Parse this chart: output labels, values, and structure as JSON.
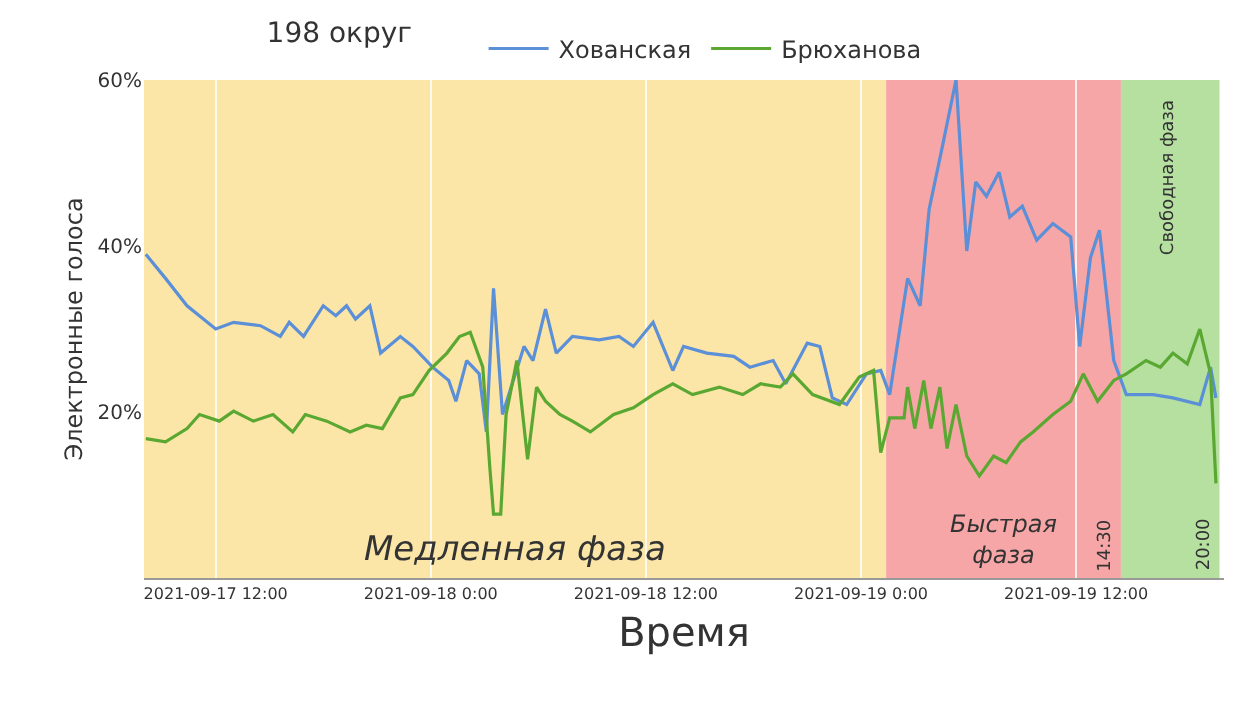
{
  "chart_data": {
    "type": "line",
    "title": "198 округ",
    "xlabel": "Время",
    "ylabel": "Электронные голоса",
    "xlim": [
      "2021-09-17T08:00",
      "2021-09-19T20:15"
    ],
    "xticks": [
      {
        "value": "2021-09-17T12:00",
        "label": "2021-09-17 12:00"
      },
      {
        "value": "2021-09-18T00:00",
        "label": "2021-09-18 0:00"
      },
      {
        "value": "2021-09-18T12:00",
        "label": "2021-09-18 12:00"
      },
      {
        "value": "2021-09-19T00:00",
        "label": "2021-09-19 0:00"
      },
      {
        "value": "2021-09-19T12:00",
        "label": "2021-09-19 12:00"
      }
    ],
    "ylim": [
      0,
      60
    ],
    "yticks": [
      {
        "value": 0,
        "label": null
      },
      {
        "value": 20,
        "label": "20%"
      },
      {
        "value": 40,
        "label": "40%"
      },
      {
        "value": 60,
        "label": "60%"
      }
    ],
    "grid": "x",
    "legend": "top",
    "marker": "none",
    "line_style": "solid",
    "bands": [
      {
        "axis": "x",
        "from": "2021-09-17T08:00",
        "to": "2021-09-19T01:24",
        "label": "Медленная фаза",
        "color": "#fbe6a8"
      },
      {
        "axis": "x",
        "from": "2021-09-19T01:24",
        "to": "2021-09-19T14:30",
        "label": "Быстрая фаза",
        "color": "#f6a6a6"
      },
      {
        "axis": "x",
        "from": "2021-09-19T14:30",
        "to": "2021-09-19T20:00",
        "label": "Свободная фаза",
        "color": "#b5e0a0"
      }
    ],
    "annotations": [
      {
        "text": "14:30",
        "x": "2021-09-19T14:30",
        "y": 4
      },
      {
        "text": "20:00",
        "x": "2021-09-19T20:00",
        "y": 4
      }
    ],
    "series": [
      {
        "name": "Хованская",
        "color": "#5b8fd8",
        "x": [
          "2021-09-17T08:06",
          "2021-09-17T09:12",
          "2021-09-17T10:24",
          "2021-09-17T12:00",
          "2021-09-17T13:00",
          "2021-09-17T14:30",
          "2021-09-17T15:36",
          "2021-09-17T16:06",
          "2021-09-17T16:54",
          "2021-09-17T18:00",
          "2021-09-17T18:42",
          "2021-09-17T19:18",
          "2021-09-17T19:48",
          "2021-09-17T20:36",
          "2021-09-17T21:12",
          "2021-09-17T22:18",
          "2021-09-17T23:00",
          "2021-09-18T00:06",
          "2021-09-18T01:00",
          "2021-09-18T01:24",
          "2021-09-18T02:00",
          "2021-09-18T02:42",
          "2021-09-18T03:06",
          "2021-09-18T03:30",
          "2021-09-18T04:00",
          "2021-09-18T04:36",
          "2021-09-18T05:12",
          "2021-09-18T05:42",
          "2021-09-18T06:24",
          "2021-09-18T07:00",
          "2021-09-18T07:54",
          "2021-09-18T09:24",
          "2021-09-18T10:30",
          "2021-09-18T11:18",
          "2021-09-18T12:24",
          "2021-09-18T13:30",
          "2021-09-18T14:06",
          "2021-09-18T15:24",
          "2021-09-18T16:54",
          "2021-09-18T17:48",
          "2021-09-18T19:06",
          "2021-09-18T19:48",
          "2021-09-18T21:00",
          "2021-09-18T21:42",
          "2021-09-18T22:24",
          "2021-09-18T23:12",
          "2021-09-19T00:18",
          "2021-09-19T01:06",
          "2021-09-19T01:36",
          "2021-09-19T02:36",
          "2021-09-19T03:18",
          "2021-09-19T03:48",
          "2021-09-19T04:36",
          "2021-09-19T05:18",
          "2021-09-19T05:54",
          "2021-09-19T06:24",
          "2021-09-19T07:00",
          "2021-09-19T07:42",
          "2021-09-19T08:18",
          "2021-09-19T09:00",
          "2021-09-19T09:48",
          "2021-09-19T10:42",
          "2021-09-19T11:42",
          "2021-09-19T12:12",
          "2021-09-19T12:48",
          "2021-09-19T13:18",
          "2021-09-19T14:06",
          "2021-09-19T14:48",
          "2021-09-19T16:18",
          "2021-09-19T17:24",
          "2021-09-19T18:54",
          "2021-09-19T19:30",
          "2021-09-19T19:48"
        ],
        "values": [
          39.0,
          36.1,
          32.8,
          30.0,
          30.8,
          30.4,
          29.1,
          30.8,
          29.1,
          32.8,
          31.6,
          32.8,
          31.2,
          32.8,
          27.1,
          29.1,
          27.9,
          25.4,
          23.8,
          21.3,
          26.2,
          24.6,
          17.6,
          34.9,
          19.7,
          23.8,
          27.9,
          26.2,
          32.4,
          27.1,
          29.1,
          28.7,
          29.1,
          27.9,
          30.8,
          25.0,
          27.9,
          27.1,
          26.7,
          25.4,
          26.2,
          23.4,
          28.3,
          27.9,
          21.7,
          20.9,
          24.6,
          25.0,
          22.1,
          36.1,
          32.8,
          44.4,
          52.6,
          60,
          39.4,
          47.7,
          46.0,
          48.9,
          43.5,
          44.8,
          40.7,
          42.7,
          41.1,
          27.9,
          38.6,
          41.9,
          26.2,
          22.1,
          22.1,
          21.7,
          20.9,
          25.4,
          21.7
        ]
      },
      {
        "name": "Брюханова",
        "color": "#5aa832",
        "x": [
          "2021-09-17T08:06",
          "2021-09-17T09:12",
          "2021-09-17T10:24",
          "2021-09-17T11:06",
          "2021-09-17T12:12",
          "2021-09-17T13:00",
          "2021-09-17T14:06",
          "2021-09-17T15:12",
          "2021-09-17T16:18",
          "2021-09-17T17:00",
          "2021-09-17T18:12",
          "2021-09-17T19:30",
          "2021-09-17T20:24",
          "2021-09-17T21:18",
          "2021-09-17T22:18",
          "2021-09-17T23:00",
          "2021-09-17T23:54",
          "2021-09-18T00:54",
          "2021-09-18T01:36",
          "2021-09-18T02:12",
          "2021-09-18T02:54",
          "2021-09-18T03:18",
          "2021-09-18T03:30",
          "2021-09-18T03:54",
          "2021-09-18T04:12",
          "2021-09-18T04:48",
          "2021-09-18T05:24",
          "2021-09-18T05:54",
          "2021-09-18T06:24",
          "2021-09-18T07:12",
          "2021-09-18T07:54",
          "2021-09-18T08:54",
          "2021-09-18T10:12",
          "2021-09-18T11:18",
          "2021-09-18T12:24",
          "2021-09-18T13:30",
          "2021-09-18T14:36",
          "2021-09-18T16:06",
          "2021-09-18T17:24",
          "2021-09-18T18:24",
          "2021-09-18T19:30",
          "2021-09-18T20:12",
          "2021-09-18T21:18",
          "2021-09-18T22:48",
          "2021-09-18T23:54",
          "2021-09-19T00:42",
          "2021-09-19T01:06",
          "2021-09-19T01:36",
          "2021-09-19T02:24",
          "2021-09-19T02:36",
          "2021-09-19T03:00",
          "2021-09-19T03:30",
          "2021-09-19T03:54",
          "2021-09-19T04:24",
          "2021-09-19T04:48",
          "2021-09-19T05:18",
          "2021-09-19T05:54",
          "2021-09-19T06:36",
          "2021-09-19T07:24",
          "2021-09-19T08:06",
          "2021-09-19T08:54",
          "2021-09-19T09:36",
          "2021-09-19T10:42",
          "2021-09-19T11:42",
          "2021-09-19T12:24",
          "2021-09-19T13:12",
          "2021-09-19T14:06",
          "2021-09-19T14:48",
          "2021-09-19T15:54",
          "2021-09-19T16:42",
          "2021-09-19T17:24",
          "2021-09-19T18:12",
          "2021-09-19T18:54",
          "2021-09-19T19:30",
          "2021-09-19T19:48"
        ],
        "values": [
          16.8,
          16.4,
          18.0,
          19.7,
          18.9,
          20.1,
          18.9,
          19.7,
          17.6,
          19.7,
          18.9,
          17.6,
          18.4,
          18.0,
          21.7,
          22.1,
          25.0,
          27.1,
          29.1,
          29.6,
          25.4,
          13.1,
          7.7,
          7.7,
          19.7,
          26.2,
          14.3,
          23.0,
          21.3,
          19.7,
          18.9,
          17.6,
          19.7,
          20.5,
          22.1,
          23.4,
          22.1,
          23.0,
          22.1,
          23.4,
          23.0,
          24.6,
          22.1,
          20.9,
          24.2,
          25.0,
          15.1,
          19.3,
          19.3,
          23.0,
          18.0,
          23.8,
          18.0,
          23.0,
          15.6,
          20.9,
          14.7,
          12.3,
          14.7,
          13.9,
          16.4,
          17.6,
          19.7,
          21.3,
          24.6,
          21.3,
          23.8,
          24.6,
          26.2,
          25.4,
          27.1,
          25.8,
          30.0,
          24.6,
          11.4
        ]
      }
    ]
  }
}
